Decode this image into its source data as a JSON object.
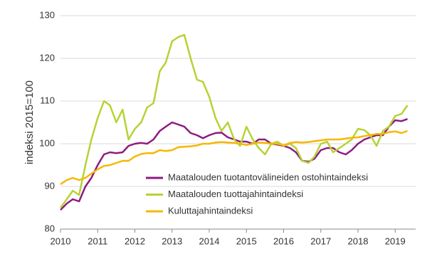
{
  "chart_data": {
    "type": "line",
    "ylabel": "indeksi 2015=100",
    "x": [
      2010.0,
      2010.17,
      2010.33,
      2010.5,
      2010.67,
      2010.83,
      2011.0,
      2011.17,
      2011.33,
      2011.5,
      2011.67,
      2011.83,
      2012.0,
      2012.17,
      2012.33,
      2012.5,
      2012.67,
      2012.83,
      2013.0,
      2013.17,
      2013.33,
      2013.5,
      2013.67,
      2013.83,
      2014.0,
      2014.17,
      2014.33,
      2014.5,
      2014.67,
      2014.83,
      2015.0,
      2015.17,
      2015.33,
      2015.5,
      2015.67,
      2015.83,
      2016.0,
      2016.17,
      2016.33,
      2016.5,
      2016.67,
      2016.83,
      2017.0,
      2017.17,
      2017.33,
      2017.5,
      2017.67,
      2017.83,
      2018.0,
      2018.17,
      2018.33,
      2018.5,
      2018.67,
      2018.83,
      2019.0,
      2019.17,
      2019.33
    ],
    "series": [
      {
        "name": "Maatalouden tuotantovälineiden ostohintaindeksi",
        "color": "#8e1a80",
        "values": [
          84.5,
          86,
          87,
          86.5,
          90,
          92,
          95,
          97.5,
          98,
          97.8,
          98,
          99.5,
          100,
          100.2,
          100,
          101,
          103,
          104,
          105,
          104.5,
          104,
          102.5,
          102,
          101.3,
          102,
          102.5,
          102.6,
          101.5,
          101,
          100.5,
          100.5,
          100,
          101,
          101,
          100,
          99.8,
          99.5,
          99,
          98,
          96,
          95.8,
          96.5,
          98.5,
          99,
          99,
          98,
          97.5,
          98.5,
          100,
          101,
          101.5,
          102,
          102,
          104,
          105.5,
          105.3,
          105.8
        ]
      },
      {
        "name": "Maatalouden tuottajahintaindeksi",
        "color": "#b5d334",
        "values": [
          85,
          87,
          89,
          88,
          95,
          101,
          106,
          110,
          109,
          105,
          108,
          101,
          103.5,
          105,
          108.5,
          109.5,
          117,
          119,
          124,
          125,
          125.5,
          120,
          115,
          114.5,
          111,
          106,
          103,
          105,
          101,
          99.5,
          104,
          101,
          99,
          97.5,
          100,
          100.5,
          99.5,
          100,
          99,
          96,
          95.5,
          97,
          100,
          100.5,
          98,
          99,
          100,
          101,
          103.5,
          103.2,
          102,
          99.5,
          103,
          104,
          106.5,
          107,
          109
        ]
      },
      {
        "name": "Kuluttajahintaindeksi",
        "color": "#f5b800",
        "values": [
          90.5,
          91.5,
          92,
          91.5,
          92,
          93,
          94,
          94.8,
          95,
          95.5,
          96,
          96,
          97,
          97.6,
          97.8,
          97.8,
          98.5,
          98.3,
          98.5,
          99.2,
          99.3,
          99.4,
          99.6,
          100,
          100,
          100.3,
          100.4,
          100.3,
          100.2,
          100,
          99.7,
          100,
          100.3,
          100.2,
          100,
          100,
          99.6,
          100.2,
          100.4,
          100.3,
          100.4,
          100.6,
          100.8,
          101,
          101,
          101,
          101.2,
          101.4,
          101.5,
          101.8,
          102,
          102.3,
          102.3,
          102.7,
          102.9,
          102.5,
          103
        ]
      }
    ],
    "xlim": [
      2010,
      2019.55
    ],
    "xticks": [
      2010,
      2011,
      2012,
      2013,
      2014,
      2015,
      2016,
      2017,
      2018,
      2019
    ],
    "ylim": [
      80,
      130
    ],
    "yticks": [
      80,
      90,
      100,
      110,
      120,
      130
    ],
    "grid": true,
    "legend": "lower right"
  }
}
